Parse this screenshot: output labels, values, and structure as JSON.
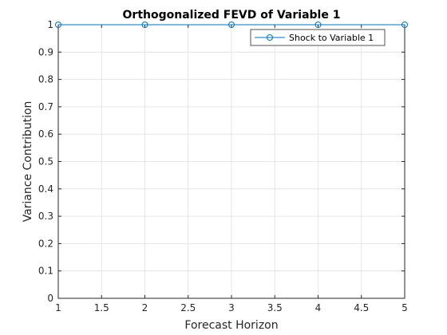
{
  "chart_data": {
    "type": "line",
    "title": "Orthogonalized FEVD of Variable 1",
    "xlabel": "Forecast Horizon",
    "ylabel": "Variance Contribution",
    "xlim": [
      1,
      5
    ],
    "ylim": [
      0,
      1
    ],
    "xticks": [
      "1",
      "1.5",
      "2",
      "2.5",
      "3",
      "3.5",
      "4",
      "4.5",
      "5"
    ],
    "yticks": [
      "0",
      "0.1",
      "0.2",
      "0.3",
      "0.4",
      "0.5",
      "0.6",
      "0.7",
      "0.8",
      "0.9",
      "1"
    ],
    "grid": true,
    "legend_position": "top-right",
    "series": [
      {
        "name": "Shock to Variable 1",
        "x": [
          1,
          2,
          3,
          4,
          5
        ],
        "y": [
          1,
          1,
          1,
          1,
          1
        ],
        "marker": "circle",
        "color": "#0072BD"
      }
    ]
  }
}
